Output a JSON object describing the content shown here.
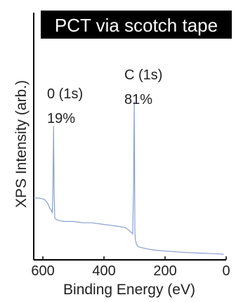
{
  "chart_data": {
    "type": "line",
    "title": "PCT via scotch tape",
    "xlabel": "Binding Energy (eV)",
    "ylabel": "XPS Intensity (arb.)",
    "xlim": [
      630,
      0
    ],
    "ylim": [
      0,
      100
    ],
    "x_ticks": [
      600,
      400,
      200,
      0
    ],
    "y_ticks": [],
    "grid": false,
    "legend": "none",
    "colors": {
      "spectrum": "#8c9fd4",
      "axis": "#000000",
      "title_bg": "#000000",
      "title_text": "#ffffff"
    },
    "annotations": [
      {
        "label": "0 (1s)",
        "value": "19%",
        "x": 565
      },
      {
        "label": "C (1s)",
        "value": "81%",
        "x": 300
      }
    ],
    "series": [
      {
        "x": [
          630,
          612,
          595,
          585,
          578,
          572,
          569,
          567,
          565,
          563,
          561,
          558,
          550,
          530,
          500,
          470,
          440,
          410,
          380,
          350,
          330,
          318,
          310,
          306,
          303,
          301,
          299,
          297,
          294,
          290,
          280,
          260,
          240,
          220,
          200,
          180,
          160,
          140,
          120,
          100,
          80,
          60,
          40,
          20,
          8
        ],
        "y": [
          25,
          25,
          24.5,
          23,
          21,
          20,
          19,
          30,
          54,
          26,
          17,
          16.5,
          16,
          15.5,
          15.5,
          15,
          15,
          14.5,
          14,
          13.5,
          13,
          12,
          11,
          10.5,
          30,
          64,
          12,
          8,
          6.5,
          5.5,
          5,
          4.5,
          4,
          3.8,
          3.6,
          3.4,
          3.2,
          3,
          2.9,
          2.8,
          2.7,
          2.6,
          2.5,
          2.4,
          2.3
        ]
      }
    ]
  }
}
